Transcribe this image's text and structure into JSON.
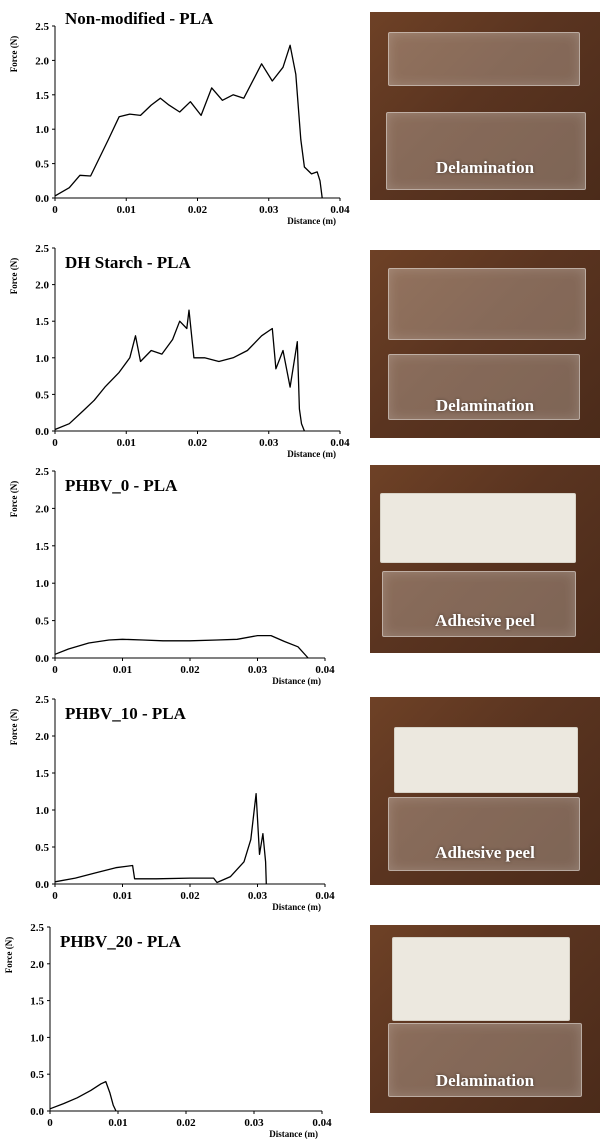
{
  "chart_data": [
    {
      "type": "line",
      "title": "Non-modified - PLA",
      "xlabel": "Distance (m)",
      "ylabel": "Force (N)",
      "xlim": [
        0,
        0.04
      ],
      "ylim": [
        0,
        2.5
      ],
      "xticks": [
        "0",
        "0.01",
        "0.02",
        "0.03",
        "0.04"
      ],
      "yticks": [
        "0.0",
        "0.5",
        "1.0",
        "1.5",
        "2.0",
        "2.5"
      ],
      "x": [
        0,
        0.002,
        0.0035,
        0.005,
        0.0075,
        0.009,
        0.0105,
        0.012,
        0.0135,
        0.0148,
        0.016,
        0.0175,
        0.019,
        0.0205,
        0.022,
        0.0235,
        0.025,
        0.0265,
        0.028,
        0.029,
        0.0305,
        0.032,
        0.033,
        0.0338,
        0.0345,
        0.035,
        0.036,
        0.0368,
        0.0372,
        0.0375
      ],
      "y": [
        0.03,
        0.15,
        0.33,
        0.32,
        0.85,
        1.18,
        1.22,
        1.2,
        1.35,
        1.45,
        1.35,
        1.25,
        1.4,
        1.2,
        1.6,
        1.42,
        1.5,
        1.45,
        1.75,
        1.95,
        1.7,
        1.9,
        2.22,
        1.8,
        0.85,
        0.45,
        0.35,
        0.38,
        0.25,
        0.0
      ],
      "photo_caption": "Delamination"
    },
    {
      "type": "line",
      "title": "DH Starch - PLA",
      "xlabel": "Distance (m)",
      "ylabel": "Force (N)",
      "xlim": [
        0,
        0.04
      ],
      "ylim": [
        0,
        2.5
      ],
      "xticks": [
        "0",
        "0.01",
        "0.02",
        "0.03",
        "0.04"
      ],
      "yticks": [
        "0.0",
        "0.5",
        "1.0",
        "1.5",
        "2.0",
        "2.5"
      ],
      "x": [
        0,
        0.002,
        0.004,
        0.0055,
        0.007,
        0.009,
        0.0105,
        0.0113,
        0.012,
        0.0135,
        0.015,
        0.0165,
        0.0175,
        0.0185,
        0.0188,
        0.0195,
        0.021,
        0.023,
        0.025,
        0.027,
        0.029,
        0.0305,
        0.031,
        0.032,
        0.033,
        0.034,
        0.0343,
        0.0346,
        0.035
      ],
      "y": [
        0.02,
        0.1,
        0.28,
        0.42,
        0.6,
        0.8,
        1.0,
        1.3,
        0.95,
        1.1,
        1.05,
        1.25,
        1.5,
        1.4,
        1.65,
        1.0,
        1.0,
        0.95,
        1.0,
        1.1,
        1.3,
        1.4,
        0.85,
        1.1,
        0.6,
        1.22,
        0.3,
        0.1,
        0.0
      ],
      "photo_caption": "Delamination"
    },
    {
      "type": "line",
      "title": "PHBV_0 - PLA",
      "xlabel": "Distance (m)",
      "ylabel": "Force (N)",
      "xlim": [
        0,
        0.04
      ],
      "ylim": [
        0,
        2.5
      ],
      "xticks": [
        "0",
        "0.01",
        "0.02",
        "0.03",
        "0.04"
      ],
      "yticks": [
        "0.0",
        "0.5",
        "1.0",
        "1.5",
        "2.0",
        "2.5"
      ],
      "x": [
        0,
        0.002,
        0.005,
        0.008,
        0.01,
        0.013,
        0.016,
        0.02,
        0.024,
        0.027,
        0.03,
        0.032,
        0.034,
        0.036,
        0.0375
      ],
      "y": [
        0.05,
        0.12,
        0.2,
        0.24,
        0.25,
        0.24,
        0.23,
        0.23,
        0.24,
        0.25,
        0.3,
        0.3,
        0.22,
        0.15,
        0.0
      ],
      "photo_caption": "Adhesive peel"
    },
    {
      "type": "line",
      "title": "PHBV_10 - PLA",
      "xlabel": "Distance (m)",
      "ylabel": "Force (N)",
      "xlim": [
        0,
        0.04
      ],
      "ylim": [
        0,
        2.5
      ],
      "xticks": [
        "0",
        "0.01",
        "0.02",
        "0.03",
        "0.04"
      ],
      "yticks": [
        "0.0",
        "0.5",
        "1.0",
        "1.5",
        "2.0",
        "2.5"
      ],
      "x": [
        0,
        0.003,
        0.006,
        0.009,
        0.0115,
        0.0118,
        0.015,
        0.02,
        0.0235,
        0.024,
        0.026,
        0.028,
        0.029,
        0.0298,
        0.0303,
        0.0308,
        0.0312,
        0.0313
      ],
      "y": [
        0.03,
        0.08,
        0.15,
        0.22,
        0.25,
        0.07,
        0.07,
        0.08,
        0.08,
        0.02,
        0.1,
        0.3,
        0.6,
        1.22,
        0.4,
        0.68,
        0.3,
        0.0
      ],
      "photo_caption": "Adhesive peel"
    },
    {
      "type": "line",
      "title": "PHBV_20 - PLA",
      "xlabel": "Distance (m)",
      "ylabel": "Force (N)",
      "xlim": [
        0,
        0.04
      ],
      "ylim": [
        0,
        2.5
      ],
      "xticks": [
        "0",
        "0.01",
        "0.02",
        "0.03",
        "0.04"
      ],
      "yticks": [
        "0.0",
        "0.5",
        "1.0",
        "1.5",
        "2.0",
        "2.5"
      ],
      "x": [
        0,
        0.002,
        0.004,
        0.006,
        0.0075,
        0.0082,
        0.0088,
        0.0093,
        0.0097
      ],
      "y": [
        0.03,
        0.1,
        0.18,
        0.28,
        0.37,
        0.4,
        0.25,
        0.08,
        0.0
      ],
      "photo_caption": "Delamination"
    }
  ]
}
